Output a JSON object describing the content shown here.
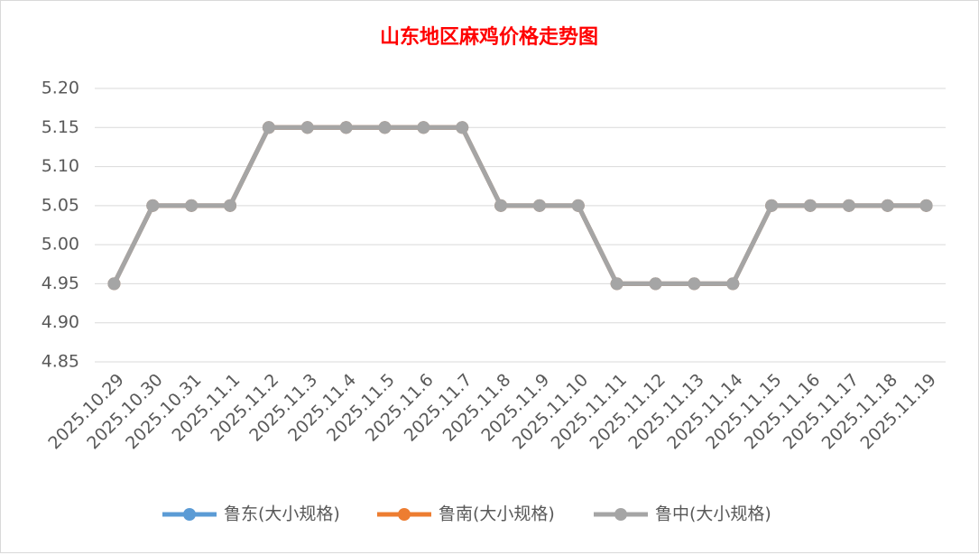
{
  "chart_data": {
    "type": "line",
    "title": "山东地区麻鸡价格走势图",
    "categories": [
      "2025.10.29",
      "2025.10.30",
      "2025.10.31",
      "2025.11.1",
      "2025.11.2",
      "2025.11.3",
      "2025.11.4",
      "2025.11.5",
      "2025.11.6",
      "2025.11.7",
      "2025.11.8",
      "2025.11.9",
      "2025.11.10",
      "2025.11.11",
      "2025.11.12",
      "2025.11.13",
      "2025.11.14",
      "2025.11.15",
      "2025.11.16",
      "2025.11.17",
      "2025.11.18",
      "2025.11.19"
    ],
    "series": [
      {
        "name": "鲁东(大小规格)",
        "color": "#5b9bd5",
        "values": [
          4.95,
          5.05,
          5.05,
          5.05,
          5.15,
          5.15,
          5.15,
          5.15,
          5.15,
          5.15,
          5.05,
          5.05,
          5.05,
          4.95,
          4.95,
          4.95,
          4.95,
          5.05,
          5.05,
          5.05,
          5.05,
          5.05
        ]
      },
      {
        "name": "鲁南(大小规格)",
        "color": "#ed7d31",
        "values": [
          4.95,
          5.05,
          5.05,
          5.05,
          5.15,
          5.15,
          5.15,
          5.15,
          5.15,
          5.15,
          5.05,
          5.05,
          5.05,
          4.95,
          4.95,
          4.95,
          4.95,
          5.05,
          5.05,
          5.05,
          5.05,
          5.05
        ]
      },
      {
        "name": "鲁中(大小规格)",
        "color": "#a5a5a5",
        "values": [
          4.95,
          5.05,
          5.05,
          5.05,
          5.15,
          5.15,
          5.15,
          5.15,
          5.15,
          5.15,
          5.05,
          5.05,
          5.05,
          4.95,
          4.95,
          4.95,
          4.95,
          5.05,
          5.05,
          5.05,
          5.05,
          5.05
        ]
      }
    ],
    "ylim": [
      4.85,
      5.2
    ],
    "yticks": [
      {
        "value": 4.85,
        "label": "4.85"
      },
      {
        "value": 4.9,
        "label": "4.90"
      },
      {
        "value": 4.95,
        "label": "4.95"
      },
      {
        "value": 5.0,
        "label": "5.00"
      },
      {
        "value": 5.05,
        "label": "5.05"
      },
      {
        "value": 5.1,
        "label": "5.10"
      },
      {
        "value": 5.15,
        "label": "5.15"
      },
      {
        "value": 5.2,
        "label": "5.20"
      }
    ],
    "grid": true,
    "legend": "bottom"
  }
}
